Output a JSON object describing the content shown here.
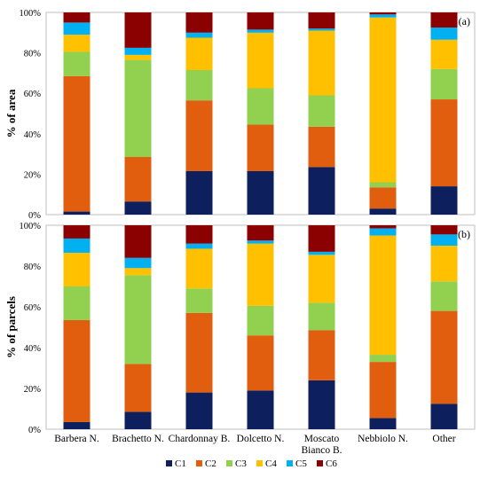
{
  "series_names": [
    "C1",
    "C2",
    "C3",
    "C4",
    "C5",
    "C6"
  ],
  "colors": [
    "#0d1f5c",
    "#e15e0e",
    "#92d050",
    "#ffc000",
    "#00b0f0",
    "#8b0000"
  ],
  "categories": [
    [
      "Barbera N."
    ],
    [
      "Brachetto N."
    ],
    [
      "Chardonnay B."
    ],
    [
      "Dolcetto N."
    ],
    [
      "Moscato",
      "Bianco B."
    ],
    [
      "Nebbiolo N."
    ],
    [
      "Other"
    ]
  ],
  "chart_data": [
    {
      "type": "bar",
      "stacked": true,
      "panel_label": "(a)",
      "ylabel": "% of area",
      "ylim": [
        0,
        100
      ],
      "yticks": [
        "0%",
        "20%",
        "40%",
        "60%",
        "80%",
        "100%"
      ],
      "categories": [
        "Barbera N.",
        "Brachetto N.",
        "Chardonnay B.",
        "Dolcetto N.",
        "Moscato Bianco B.",
        "Nebbiolo N.",
        "Other"
      ],
      "series": [
        {
          "name": "C1",
          "values": [
            1.5,
            6.5,
            21.5,
            21.5,
            23.5,
            3,
            14
          ]
        },
        {
          "name": "C2",
          "values": [
            67,
            22,
            35,
            23,
            20,
            10.5,
            43
          ]
        },
        {
          "name": "C3",
          "values": [
            12,
            48,
            15,
            18,
            15.5,
            2.5,
            15
          ]
        },
        {
          "name": "C4",
          "values": [
            8.5,
            2.5,
            16,
            27.5,
            32,
            81.5,
            14.5
          ]
        },
        {
          "name": "C5",
          "values": [
            6,
            3.5,
            2.5,
            1.5,
            1,
            1.5,
            6
          ]
        },
        {
          "name": "C6",
          "values": [
            5,
            17.5,
            10,
            8.5,
            8,
            1,
            7.5
          ]
        }
      ],
      "legend": "bottom"
    },
    {
      "type": "bar",
      "stacked": true,
      "panel_label": "(b)",
      "ylabel": "% of parcels",
      "ylim": [
        0,
        100
      ],
      "yticks": [
        "0%",
        "20%",
        "40%",
        "60%",
        "80%",
        "100%"
      ],
      "categories": [
        "Barbera N.",
        "Brachetto N.",
        "Chardonnay B.",
        "Dolcetto N.",
        "Moscato Bianco B.",
        "Nebbiolo N.",
        "Other"
      ],
      "series": [
        {
          "name": "C1",
          "values": [
            3.5,
            8.5,
            18,
            19,
            24,
            5.5,
            12.5
          ]
        },
        {
          "name": "C2",
          "values": [
            50,
            23.5,
            39,
            27,
            24.5,
            27.5,
            45.5
          ]
        },
        {
          "name": "C3",
          "values": [
            16.5,
            43.5,
            12,
            14.5,
            13.5,
            3.5,
            14.5
          ]
        },
        {
          "name": "C4",
          "values": [
            16.5,
            3.5,
            19.5,
            30.5,
            23.5,
            58.5,
            17.5
          ]
        },
        {
          "name": "C5",
          "values": [
            7,
            5,
            2.5,
            1.5,
            1.5,
            3.5,
            5.5
          ]
        },
        {
          "name": "C6",
          "values": [
            6.5,
            16,
            9,
            7.5,
            13,
            1.5,
            4.5
          ]
        }
      ],
      "legend": "bottom"
    }
  ]
}
